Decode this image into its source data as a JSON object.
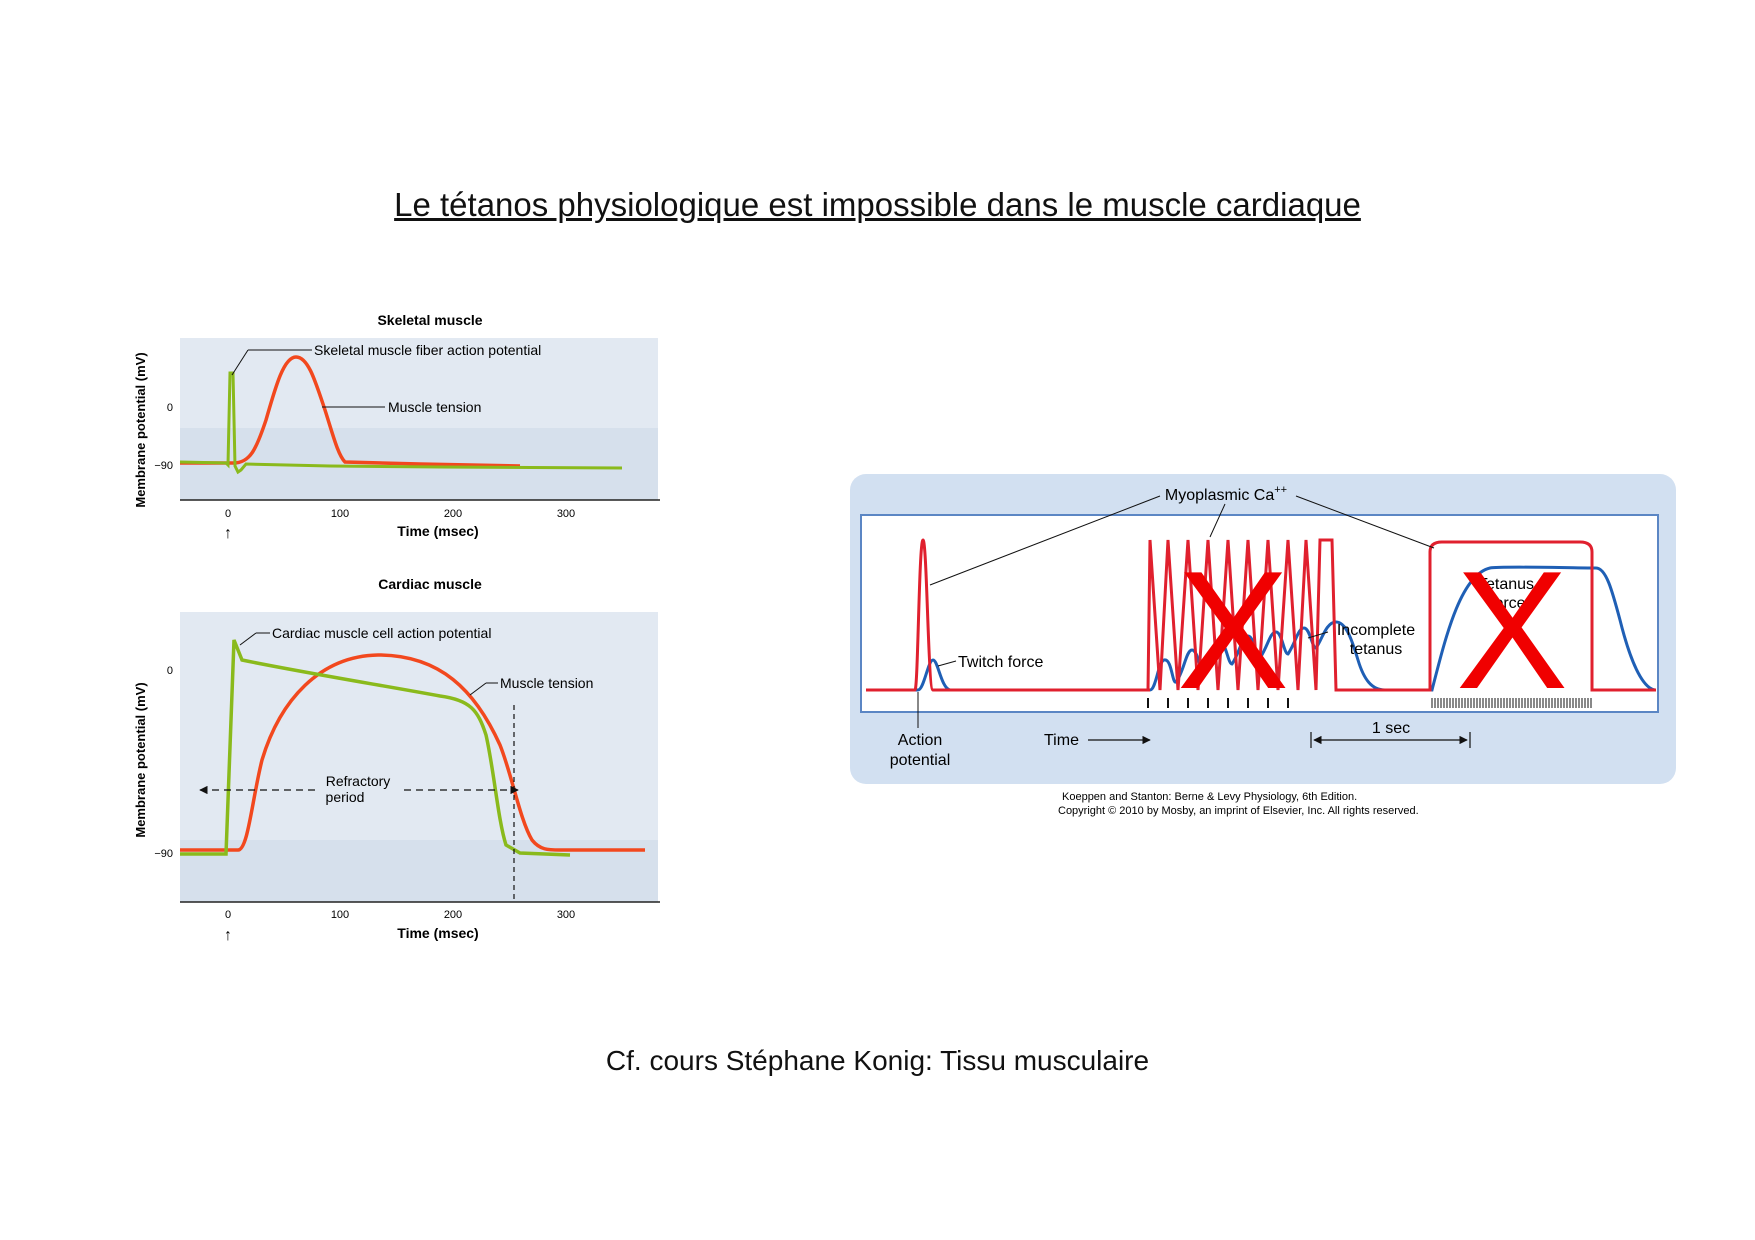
{
  "title": "Le tétanos physiologique est impossible dans le muscle cardiaque",
  "footer": "Cf. cours Stéphane Konig: Tissu musculaire",
  "colors": {
    "action_potential": "#8aba1c",
    "muscle_tension": "#f2481e",
    "calcium": "#e0202e",
    "force": "#1f5fb5",
    "panel_bg": "#d2e0f1",
    "cross": "#f00000"
  },
  "skeletal": {
    "title": "Skeletal muscle",
    "ylabel": "Membrane potential (mV)",
    "xlabel": "Time (msec)",
    "yticks": [
      "0",
      "−90"
    ],
    "xticks": [
      "0",
      "100",
      "200",
      "300"
    ],
    "ap_label": "Skeletal muscle fiber action potential",
    "tension_label": "Muscle tension",
    "stimulus_marker": "↑"
  },
  "cardiac": {
    "title": "Cardiac muscle",
    "ylabel": "Membrane potential (mV)",
    "xlabel": "Time (msec)",
    "yticks": [
      "0",
      "−90"
    ],
    "xticks": [
      "0",
      "100",
      "200",
      "300"
    ],
    "ap_label": "Cardiac muscle cell action potential",
    "tension_label": "Muscle tension",
    "refractory_line1": "Refractory",
    "refractory_line2": "period",
    "stimulus_marker": "↑"
  },
  "summation": {
    "calcium_label": "Myoplasmic Ca",
    "calcium_superscript": "++",
    "twitch_label": "Twitch force",
    "incomplete_line1": "Incomplete",
    "incomplete_line2": "tetanus",
    "tetanus_line1": "Tetanus",
    "tetanus_line2": "force",
    "action_line1": "Action",
    "action_line2": "potential",
    "time_label": "Time",
    "scale_label": "1 sec",
    "cross_mark": "X",
    "credit_line1": "Koeppen and Stanton: Berne & Levy Physiology, 6th Edition.",
    "credit_line2": "Copyright © 2010 by Mosby, an imprint of Elsevier, Inc. All rights reserved."
  }
}
